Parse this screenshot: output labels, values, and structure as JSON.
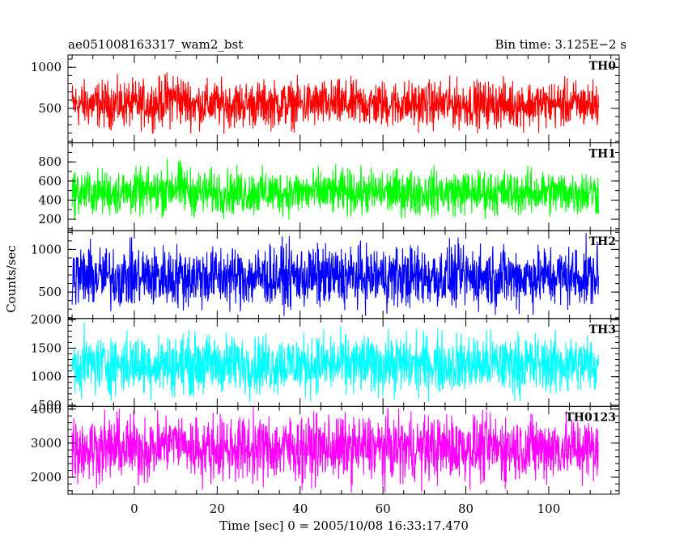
{
  "chart_data": {
    "type": "line",
    "title_left": "ae051008163317_wam2_bst",
    "title_right": "Bin time: 3.125E−2  s",
    "xlabel": "Time [sec] 0 = 2005/10/08 16:33:17.470",
    "ylabel": "Counts/sec",
    "xlim": [
      -16,
      117
    ],
    "x_ticks": [
      0,
      20,
      40,
      60,
      80,
      100
    ],
    "x_tick_labels": [
      "0",
      "20",
      "40",
      "60",
      "80",
      "100"
    ],
    "x_minor_step": 5,
    "data_x_range": [
      -15,
      112
    ],
    "bin_time_s": 0.03125,
    "grid": false,
    "legend": "none",
    "panels": [
      {
        "name": "TH0",
        "color": "#ff0000",
        "ylim": [
          80,
          1150
        ],
        "y_ticks": [
          500,
          1000
        ],
        "y_tick_labels": [
          "500",
          "1000"
        ],
        "y_minor_step": 100,
        "mean": 550,
        "spread": [
          190,
          1130
        ],
        "burst": {
          "t": [
            5,
            14
          ],
          "boost": 90
        }
      },
      {
        "name": "TH1",
        "color": "#00ff00",
        "ylim": [
          80,
          1000
        ],
        "y_ticks": [
          200,
          400,
          600,
          800
        ],
        "y_tick_labels": [
          "200",
          "400",
          "600",
          "800"
        ],
        "y_minor_step": 100,
        "mean": 480,
        "spread": [
          180,
          950
        ],
        "burst": {
          "t": [
            5,
            14
          ],
          "boost": 70
        }
      },
      {
        "name": "TH2",
        "color": "#0000ff",
        "ylim": [
          190,
          1220
        ],
        "y_ticks": [
          500,
          1000
        ],
        "y_tick_labels": [
          "500",
          "1000"
        ],
        "y_minor_step": 100,
        "mean": 680,
        "spread": [
          220,
          1210
        ],
        "burst": null
      },
      {
        "name": "TH3",
        "color": "#00ffff",
        "ylim": [
          480,
          2020
        ],
        "y_ticks": [
          500,
          1000,
          1500,
          2000
        ],
        "y_tick_labels": [
          "500",
          "1000",
          "1500",
          "2000"
        ],
        "y_minor_step": 100,
        "mean": 1220,
        "spread": [
          560,
          2000
        ],
        "burst": null
      },
      {
        "name": "TH0123",
        "color": "#ff00ff",
        "ylim": [
          1500,
          4080
        ],
        "y_ticks": [
          2000,
          3000,
          4000
        ],
        "y_tick_labels": [
          "2000",
          "3000",
          "4000"
        ],
        "y_minor_step": 200,
        "mean": 2850,
        "spread": [
          1550,
          4080
        ],
        "burst": {
          "t": [
            5,
            14
          ],
          "boost": 260
        }
      }
    ]
  }
}
